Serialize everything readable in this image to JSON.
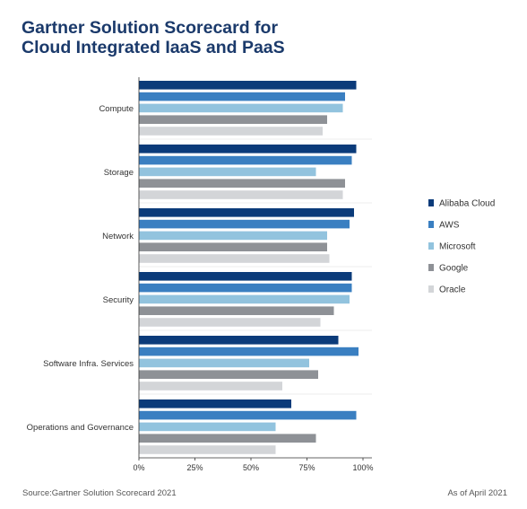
{
  "header": {
    "title_line1": "Gartner Solution Scorecard for",
    "title_line2": "Cloud Integrated IaaS and PaaS"
  },
  "footer": {
    "source": "Source:Gartner Solution Scorecard 2021",
    "date": "As of April 2021"
  },
  "chart_data": {
    "type": "bar",
    "orientation": "horizontal",
    "title": "Gartner Solution Scorecard for Cloud Integrated IaaS and PaaS",
    "categories": [
      "Compute",
      "Storage",
      "Network",
      "Security",
      "Software Infra. Services",
      "Operations and Governance"
    ],
    "series": [
      {
        "name": "Alibaba Cloud",
        "color": "#0b3b7a",
        "values": [
          97,
          97,
          96,
          95,
          89,
          68
        ]
      },
      {
        "name": "AWS",
        "color": "#3a7fc1",
        "values": [
          92,
          95,
          94,
          95,
          98,
          97
        ]
      },
      {
        "name": "Microsoft",
        "color": "#92c3de",
        "values": [
          91,
          79,
          84,
          94,
          76,
          61
        ]
      },
      {
        "name": "Google",
        "color": "#8e9196",
        "values": [
          84,
          92,
          84,
          87,
          80,
          79
        ]
      },
      {
        "name": "Oracle",
        "color": "#d3d5d8",
        "values": [
          82,
          91,
          85,
          81,
          64,
          61
        ]
      }
    ],
    "x_ticks": [
      "0%",
      "25%",
      "50%",
      "75%",
      "100%"
    ],
    "xlim": [
      0,
      100
    ],
    "xlabel": "",
    "ylabel": "",
    "grid": false,
    "legend_position": "right"
  }
}
